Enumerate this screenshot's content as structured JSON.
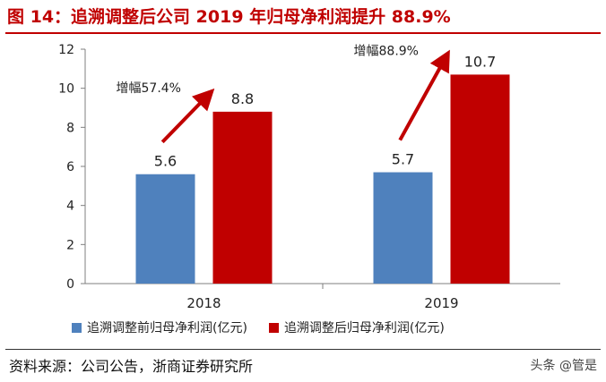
{
  "figure": {
    "title": "图 14：追溯调整后公司 2019 年归母净利润提升 88.9%",
    "source": "资料来源：公司公告，浙商证券研究所",
    "watermark": "头条 @管是"
  },
  "chart_data": {
    "type": "bar",
    "categories": [
      "2018",
      "2019"
    ],
    "series": [
      {
        "name": "追溯调整前归母净利润(亿元)",
        "values": [
          5.6,
          5.7
        ],
        "color": "#4f81bd"
      },
      {
        "name": "追溯调整后归母净利润(亿元)",
        "values": [
          8.8,
          10.7
        ],
        "color": "#c00000"
      }
    ],
    "annotations": [
      "增幅57.4%",
      "增幅88.9%"
    ],
    "ylim": [
      0,
      12
    ],
    "yticks": [
      0,
      2,
      4,
      6,
      8,
      10,
      12
    ],
    "grid": false,
    "legend": "bottom",
    "arrow_color": "#c00000"
  }
}
